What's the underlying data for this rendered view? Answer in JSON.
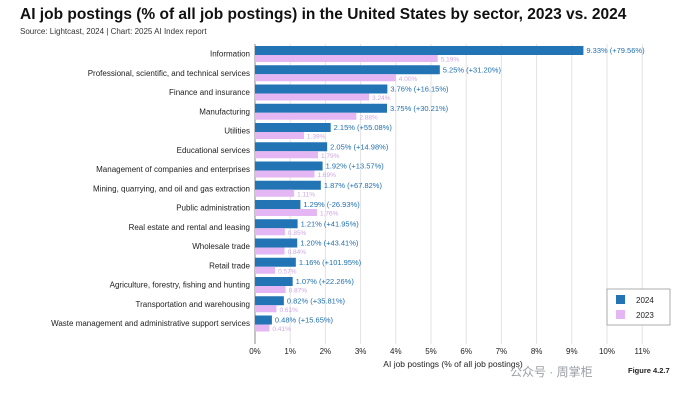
{
  "title": "AI job postings (% of all job postings) in the United States by sector, 2023 vs. 2024",
  "subtitle": "Source: Lightcast, 2024 | Chart: 2025 AI Index report",
  "figure_label": "Figure 4.2.7",
  "watermark": "公众号 · 周掌柜",
  "colors": {
    "y2024": "#2274b5",
    "y2023": "#e4b6f3",
    "label2024": "#1f6fb0",
    "label2023": "#cfa6e5",
    "grid": "#e3e3e3"
  },
  "chart_data": {
    "type": "bar",
    "orientation": "horizontal",
    "title": "AI job postings (% of all job postings) in the United States by sector, 2023 vs. 2024",
    "xlabel": "AI job postings (% of all job postings)",
    "ylabel": "",
    "xlim": [
      0,
      11
    ],
    "xticks": [
      "0%",
      "1%",
      "2%",
      "3%",
      "4%",
      "5%",
      "6%",
      "7%",
      "8%",
      "9%",
      "10%",
      "11%"
    ],
    "legend_position": "bottom-right",
    "categories": [
      "Information",
      "Professional, scientific, and technical services",
      "Finance and insurance",
      "Manufacturing",
      "Utilities",
      "Educational services",
      "Management of companies and enterprises",
      "Mining, quarrying, and oil and gas extraction",
      "Public administration",
      "Real estate and rental and leasing",
      "Wholesale trade",
      "Retail trade",
      "Agriculture, forestry, fishing and hunting",
      "Transportation and warehousing",
      "Waste management and administrative support services"
    ],
    "series": [
      {
        "name": "2024",
        "values": [
          9.33,
          5.25,
          3.76,
          3.75,
          2.15,
          2.05,
          1.92,
          1.87,
          1.29,
          1.21,
          1.2,
          1.16,
          1.07,
          0.82,
          0.48
        ],
        "labels": [
          "9.33% (+79.56%)",
          "5.25% (+31.20%)",
          "3.76% (+16.15%)",
          "3.75% (+30.21%)",
          "2.15% (+55.08%)",
          "2.05% (+14.98%)",
          "1.92% (+13.57%)",
          "1.87% (+67.82%)",
          "1.29% (-26.93%)",
          "1.21% (+41.95%)",
          "1.20% (+43.41%)",
          "1.16% (+101.95%)",
          "1.07% (+22.26%)",
          "0.82% (+35.81%)",
          "0.48% (+15.65%)"
        ]
      },
      {
        "name": "2023",
        "values": [
          5.19,
          4.0,
          3.24,
          2.88,
          1.39,
          1.79,
          1.69,
          1.11,
          1.76,
          0.85,
          0.84,
          0.57,
          0.87,
          0.61,
          0.41
        ],
        "labels": [
          "5.19%",
          "4.00%",
          "3.24%",
          "2.88%",
          "1.39%",
          "1.79%",
          "1.69%",
          "1.11%",
          "1.76%",
          "0.85%",
          "0.84%",
          "0.57%",
          "0.87%",
          "0.61%",
          "0.41%"
        ]
      }
    ]
  }
}
